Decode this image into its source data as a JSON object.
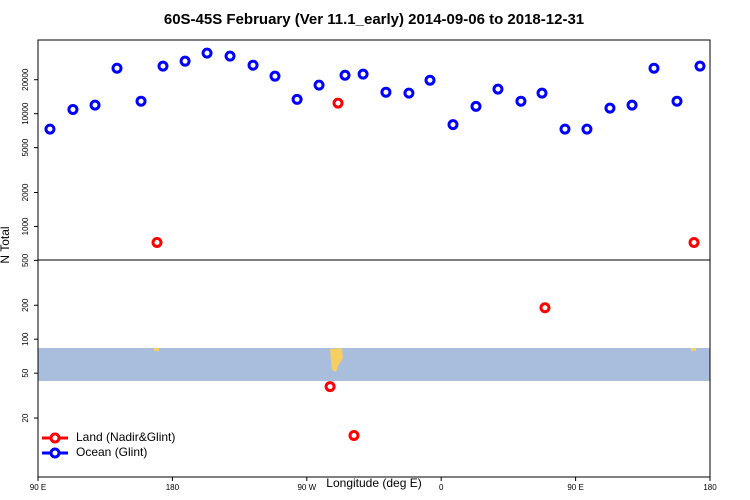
{
  "chart_data": {
    "type": "scatter",
    "title": "60S-45S February (Ver 11.1_early)   2014-09-06 to 2018-12-31",
    "x_label": "Longitude (deg E)",
    "y_label": "N Total",
    "xlim": [
      90,
      540
    ],
    "xticks": [
      {
        "value": 90,
        "label": "90 E"
      },
      180,
      {
        "value": 270,
        "label": "90 W"
      },
      {
        "value": 360,
        "label": "0"
      },
      {
        "value": 450,
        "label": "90 E"
      },
      {
        "value": 540,
        "label": "180"
      }
    ],
    "ylim": [
      6,
      45000
    ],
    "log_y": true,
    "yticks": [
      20,
      50,
      100,
      200,
      500,
      1000,
      2000,
      5000,
      10000,
      20000
    ],
    "legend": "bottom-left",
    "series": [
      {
        "name": "Land (Nadir&Glint)",
        "color": "#ff0000",
        "x": [
          169.7,
          290.9,
          285.6,
          301.6,
          429.5,
          529.3
        ],
        "values": [
          720,
          12400,
          38,
          14,
          190,
          720
        ]
      },
      {
        "name": "Ocean (Glint)",
        "color": "#0000ff",
        "x": [
          98.0,
          113.4,
          128.2,
          142.9,
          159.0,
          173.7,
          188.5,
          203.2,
          218.6,
          234.0,
          248.7,
          263.5,
          278.2,
          295.6,
          307.7,
          323.0,
          338.4,
          352.5,
          367.9,
          383.3,
          398.0,
          413.4,
          427.5,
          442.9,
          457.6,
          473.0,
          487.8,
          502.5,
          517.9,
          533.3
        ],
        "values": [
          7300,
          10900,
          11900,
          25300,
          12900,
          26400,
          29200,
          34400,
          32400,
          26900,
          21500,
          13400,
          17900,
          21900,
          22400,
          15500,
          15200,
          19800,
          8000,
          11600,
          16500,
          12900,
          15200,
          7300,
          7300,
          11200,
          11900,
          25300,
          12900,
          26400
        ]
      }
    ]
  }
}
